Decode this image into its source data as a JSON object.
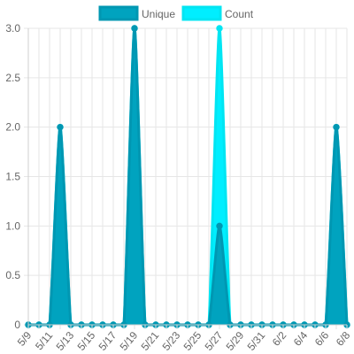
{
  "chart_data": {
    "type": "area",
    "categories": [
      "5/9",
      "5/10",
      "5/11",
      "5/12",
      "5/13",
      "5/14",
      "5/15",
      "5/16",
      "5/17",
      "5/18",
      "5/19",
      "5/20",
      "5/21",
      "5/22",
      "5/23",
      "5/24",
      "5/25",
      "5/26",
      "5/27",
      "5/28",
      "5/29",
      "5/30",
      "5/31",
      "6/1",
      "6/2",
      "6/3",
      "6/4",
      "6/5",
      "6/6",
      "6/7",
      "6/8"
    ],
    "x_tick_labels": [
      "5/9",
      "5/11",
      "5/13",
      "5/15",
      "5/17",
      "5/19",
      "5/21",
      "5/23",
      "5/25",
      "5/27",
      "5/29",
      "5/31",
      "6/2",
      "6/4",
      "6/6",
      "6/8"
    ],
    "y_ticks": [
      "0",
      "0.5",
      "1.0",
      "1.5",
      "2.0",
      "2.5",
      "3.0"
    ],
    "ylim": [
      0,
      3
    ],
    "series": [
      {
        "name": "Unique",
        "values": [
          0,
          0,
          0,
          2,
          0,
          0,
          0,
          0,
          0,
          0,
          3,
          0,
          0,
          0,
          0,
          0,
          0,
          0,
          1,
          0,
          0,
          0,
          0,
          0,
          0,
          0,
          0,
          0,
          0,
          2,
          0
        ],
        "color": "#0097b2",
        "fill": "#00a3bf"
      },
      {
        "name": "Count",
        "values": [
          0,
          0,
          0,
          2,
          0,
          0,
          0,
          0,
          0,
          0,
          3,
          0,
          0,
          0,
          0,
          0,
          0,
          0,
          3,
          0,
          0,
          0,
          0,
          0,
          0,
          0,
          0,
          0,
          0,
          2,
          0
        ],
        "color": "#00e5f2",
        "fill": "#00eeff"
      }
    ],
    "legend": "top-center",
    "grid": true
  }
}
